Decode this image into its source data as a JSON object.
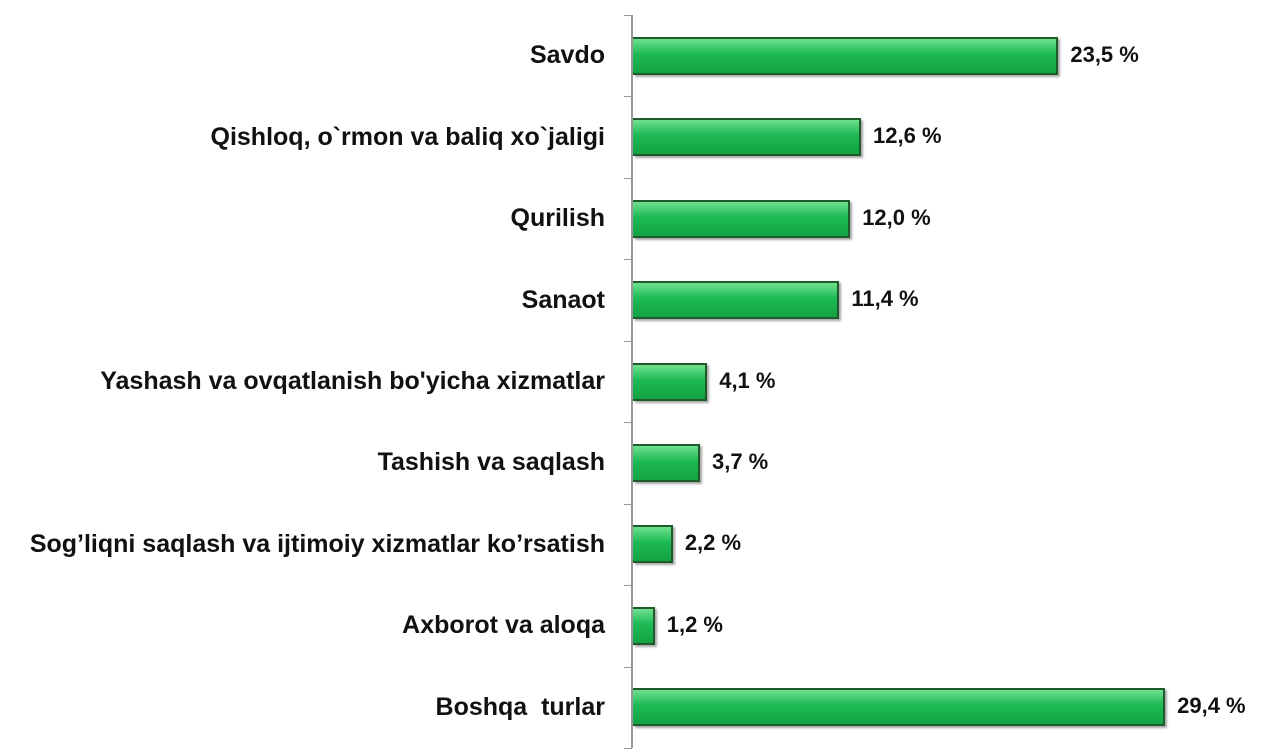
{
  "chart_data": {
    "type": "bar",
    "orientation": "horizontal",
    "color": "#1db954",
    "categories": [
      "Savdo",
      "Qishloq, o`rmon va baliq xo`jaligi",
      "Qurilish",
      "Sanaot",
      "Yashash va ovqatlanish bo'yicha xizmatlar",
      "Tashish va saqlash",
      "Sog’liqni saqlash va ijtimoiy xizmatlar ko’rsatish",
      "Axborot va aloqa",
      "Boshqa  turlar"
    ],
    "values": [
      23.5,
      12.6,
      12.0,
      11.4,
      4.1,
      3.7,
      2.2,
      1.2,
      29.4
    ],
    "value_labels": [
      "23,5 %",
      "12,6 %",
      "12,0 %",
      "11,4 %",
      "4,1 %",
      "3,7 %",
      "2,2 %",
      "1,2 %",
      "29,4 %"
    ]
  }
}
